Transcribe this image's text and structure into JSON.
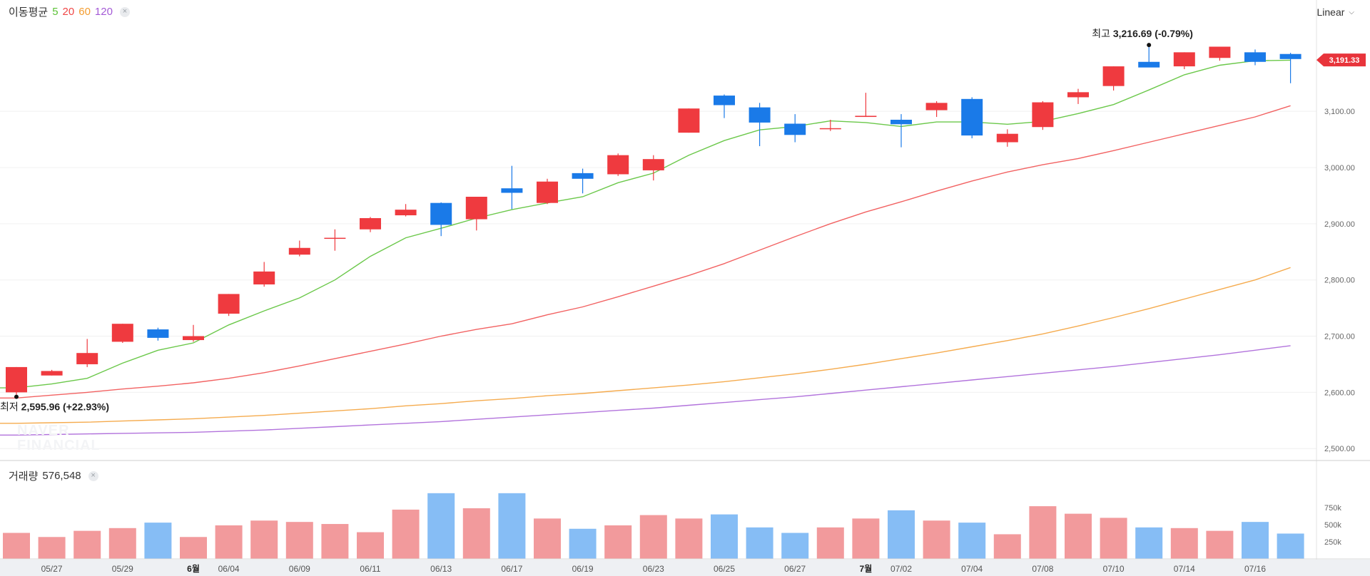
{
  "legend": {
    "title": "이동평균",
    "ma": [
      {
        "label": "5",
        "color": "#5bc236"
      },
      {
        "label": "20",
        "color": "#f04646"
      },
      {
        "label": "60",
        "color": "#f39c2f"
      },
      {
        "label": "120",
        "color": "#a45ad6"
      }
    ],
    "close": "×"
  },
  "scale_toggle": {
    "label": "Linear",
    "chevron": "⌵"
  },
  "watermark": {
    "line1": "NAVER",
    "line2": "FINANCIAL"
  },
  "volume_legend": {
    "title": "거래량",
    "value": "576,548",
    "close": "×"
  },
  "colors": {
    "up": "#ef3a3f",
    "down": "#1a7ae8",
    "up_vol": "#f29a9c",
    "down_vol": "#86bdf5",
    "grid": "#eeeeee",
    "axis_text": "#666666"
  },
  "chart_data": {
    "type": "candlestick",
    "ylim": [
      2480,
      3260
    ],
    "y_ticks": [
      "2,500.00",
      "2,600.00",
      "2,700.00",
      "2,800.00",
      "2,900.00",
      "3,000.00",
      "3,100.00"
    ],
    "y_tick_values": [
      2500,
      2600,
      2700,
      2800,
      2900,
      3000,
      3100
    ],
    "current_price": "3,191.33",
    "current_price_value": 3191.33,
    "max_annotation": {
      "prefix": "최고",
      "text": "3,216.69 (-0.79%)",
      "index": 32,
      "value": 3216.69
    },
    "min_annotation": {
      "prefix": "최저",
      "text": "2,595.96 (+22.93%)",
      "index": 0,
      "value": 2595.96
    },
    "candles": [
      {
        "o": 2600,
        "h": 2645,
        "l": 2596,
        "c": 2645
      },
      {
        "o": 2630,
        "h": 2640,
        "l": 2630,
        "c": 2638
      },
      {
        "o": 2650,
        "h": 2695,
        "l": 2645,
        "c": 2670
      },
      {
        "o": 2690,
        "h": 2722,
        "l": 2688,
        "c": 2722
      },
      {
        "o": 2712,
        "h": 2715,
        "l": 2692,
        "c": 2697
      },
      {
        "o": 2693,
        "h": 2720,
        "l": 2690,
        "c": 2700
      },
      {
        "o": 2740,
        "h": 2775,
        "l": 2736,
        "c": 2775
      },
      {
        "o": 2792,
        "h": 2832,
        "l": 2788,
        "c": 2815
      },
      {
        "o": 2845,
        "h": 2870,
        "l": 2842,
        "c": 2857
      },
      {
        "o": 2875,
        "h": 2890,
        "l": 2852,
        "c": 2875
      },
      {
        "o": 2890,
        "h": 2912,
        "l": 2885,
        "c": 2910
      },
      {
        "o": 2915,
        "h": 2935,
        "l": 2913,
        "c": 2925
      },
      {
        "o": 2937,
        "h": 2938,
        "l": 2878,
        "c": 2898
      },
      {
        "o": 2908,
        "h": 2948,
        "l": 2888,
        "c": 2948
      },
      {
        "o": 2963,
        "h": 3003,
        "l": 2926,
        "c": 2955
      },
      {
        "o": 2937,
        "h": 2980,
        "l": 2935,
        "c": 2975
      },
      {
        "o": 2990,
        "h": 2998,
        "l": 2954,
        "c": 2980
      },
      {
        "o": 2988,
        "h": 3025,
        "l": 2985,
        "c": 3022
      },
      {
        "o": 2995,
        "h": 3022,
        "l": 2977,
        "c": 3015
      },
      {
        "o": 3062,
        "h": 3105,
        "l": 3062,
        "c": 3105
      },
      {
        "o": 3128,
        "h": 3130,
        "l": 3088,
        "c": 3111
      },
      {
        "o": 3107,
        "h": 3115,
        "l": 3038,
        "c": 3080
      },
      {
        "o": 3078,
        "h": 3095,
        "l": 3045,
        "c": 3058
      },
      {
        "o": 3070,
        "h": 3085,
        "l": 3065,
        "c": 3070
      },
      {
        "o": 3090,
        "h": 3133,
        "l": 3090,
        "c": 3092
      },
      {
        "o": 3085,
        "h": 3095,
        "l": 3036,
        "c": 3077
      },
      {
        "o": 3102,
        "h": 3118,
        "l": 3090,
        "c": 3115
      },
      {
        "o": 3122,
        "h": 3125,
        "l": 3052,
        "c": 3057
      },
      {
        "o": 3045,
        "h": 3068,
        "l": 3037,
        "c": 3060
      },
      {
        "o": 3072,
        "h": 3118,
        "l": 3067,
        "c": 3116
      },
      {
        "o": 3125,
        "h": 3140,
        "l": 3113,
        "c": 3134
      },
      {
        "o": 3145,
        "h": 3180,
        "l": 3137,
        "c": 3180
      },
      {
        "o": 3188,
        "h": 3217,
        "l": 3182,
        "c": 3178
      },
      {
        "o": 3180,
        "h": 3205,
        "l": 3175,
        "c": 3205
      },
      {
        "o": 3195,
        "h": 3215,
        "l": 3190,
        "c": 3215
      },
      {
        "o": 3205,
        "h": 3210,
        "l": 3182,
        "c": 3188
      },
      {
        "o": 3202,
        "h": 3204,
        "l": 3150,
        "c": 3193
      }
    ],
    "ma5": [
      2608,
      2615,
      2625,
      2652,
      2675,
      2688,
      2720,
      2745,
      2768,
      2800,
      2842,
      2875,
      2892,
      2910,
      2925,
      2937,
      2948,
      2973,
      2990,
      3022,
      3048,
      3067,
      3073,
      3083,
      3080,
      3073,
      3081,
      3081,
      3077,
      3082,
      3096,
      3112,
      3138,
      3165,
      3182,
      3190,
      3191
    ],
    "ma20": [
      2590,
      2595,
      2600,
      2606,
      2611,
      2617,
      2625,
      2635,
      2647,
      2660,
      2673,
      2686,
      2700,
      2712,
      2722,
      2738,
      2752,
      2770,
      2789,
      2808,
      2829,
      2853,
      2877,
      2900,
      2921,
      2939,
      2958,
      2976,
      2992,
      3005,
      3016,
      3030,
      3045,
      3060,
      3075,
      3090,
      3110
    ],
    "ma60": [
      2545,
      2546,
      2547,
      2549,
      2551,
      2553,
      2556,
      2559,
      2563,
      2567,
      2571,
      2576,
      2580,
      2585,
      2589,
      2594,
      2598,
      2603,
      2608,
      2613,
      2619,
      2626,
      2633,
      2641,
      2650,
      2660,
      2670,
      2681,
      2692,
      2704,
      2718,
      2733,
      2749,
      2766,
      2783,
      2800,
      2822
    ],
    "ma120": [
      2524,
      2525,
      2526,
      2527,
      2528,
      2529,
      2531,
      2533,
      2536,
      2539,
      2542,
      2545,
      2548,
      2552,
      2556,
      2560,
      2564,
      2568,
      2572,
      2577,
      2582,
      2587,
      2592,
      2598,
      2604,
      2610,
      2616,
      2622,
      2628,
      2634,
      2640,
      2646,
      2653,
      2660,
      2667,
      2675,
      2683
    ],
    "volume": {
      "y_ticks": [
        "250k",
        "500k",
        "750k"
      ],
      "y_tick_values": [
        250000,
        500000,
        750000
      ],
      "ymax": 1000000,
      "values": [
        380000,
        320000,
        410000,
        450000,
        530000,
        320000,
        490000,
        560000,
        540000,
        510000,
        390000,
        720000,
        960000,
        740000,
        960000,
        590000,
        440000,
        490000,
        640000,
        590000,
        650000,
        460000,
        380000,
        460000,
        590000,
        710000,
        560000,
        530000,
        360000,
        770000,
        660000,
        600000,
        460000,
        450000,
        410000,
        540000,
        370000
      ]
    },
    "x_labels": [
      {
        "index": 1,
        "text": "05/27",
        "bold": false
      },
      {
        "index": 3,
        "text": "05/29",
        "bold": false
      },
      {
        "index": 5,
        "text": "6월",
        "bold": true
      },
      {
        "index": 6,
        "text": "06/04",
        "bold": false
      },
      {
        "index": 8,
        "text": "06/09",
        "bold": false
      },
      {
        "index": 10,
        "text": "06/11",
        "bold": false
      },
      {
        "index": 12,
        "text": "06/13",
        "bold": false
      },
      {
        "index": 14,
        "text": "06/17",
        "bold": false
      },
      {
        "index": 16,
        "text": "06/19",
        "bold": false
      },
      {
        "index": 18,
        "text": "06/23",
        "bold": false
      },
      {
        "index": 20,
        "text": "06/25",
        "bold": false
      },
      {
        "index": 22,
        "text": "06/27",
        "bold": false
      },
      {
        "index": 24,
        "text": "7월",
        "bold": true
      },
      {
        "index": 25,
        "text": "07/02",
        "bold": false
      },
      {
        "index": 27,
        "text": "07/04",
        "bold": false
      },
      {
        "index": 29,
        "text": "07/08",
        "bold": false
      },
      {
        "index": 31,
        "text": "07/10",
        "bold": false
      },
      {
        "index": 33,
        "text": "07/14",
        "bold": false
      },
      {
        "index": 35,
        "text": "07/16",
        "bold": false
      }
    ]
  }
}
